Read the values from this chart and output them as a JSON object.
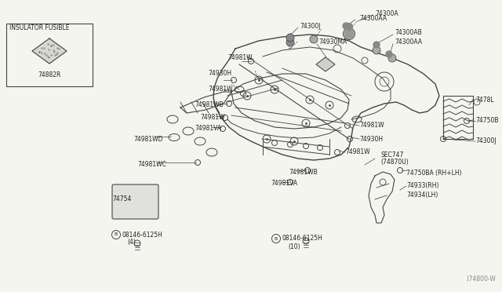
{
  "bg_color": "#f5f5f0",
  "line_color": "#444444",
  "text_color": "#222222",
  "diagram_id": ".I74800-W",
  "inset_label": "INSULATOR FUSIBLE",
  "inset_part": "74882R",
  "fig_w": 6.4,
  "fig_h": 3.72,
  "dpi": 100
}
